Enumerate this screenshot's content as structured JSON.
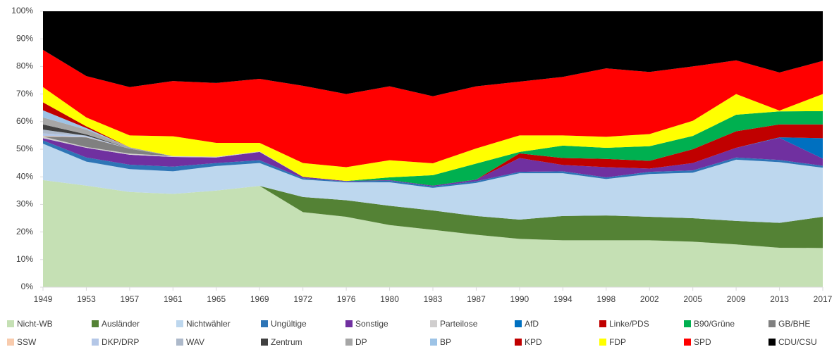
{
  "chart_data": {
    "type": "stacked_area",
    "categories": [
      "1949",
      "1953",
      "1957",
      "1961",
      "1965",
      "1969",
      "1972",
      "1976",
      "1980",
      "1983",
      "1987",
      "1990",
      "1994",
      "1998",
      "2002",
      "2005",
      "2009",
      "2013",
      "2017"
    ],
    "ylim": [
      0,
      100
    ],
    "yticks": [
      {
        "value": 0,
        "label": "0%"
      },
      {
        "value": 10,
        "label": "10%"
      },
      {
        "value": 20,
        "label": "20%"
      },
      {
        "value": 30,
        "label": "30%"
      },
      {
        "value": 40,
        "label": "40%"
      },
      {
        "value": 50,
        "label": "50%"
      },
      {
        "value": 60,
        "label": "60%"
      },
      {
        "value": 70,
        "label": "70%"
      },
      {
        "value": 80,
        "label": "80%"
      },
      {
        "value": 90,
        "label": "90%"
      },
      {
        "value": 100,
        "label": "100%"
      }
    ],
    "series": [
      {
        "name": "Nicht-WB",
        "color": "#c5e0b4",
        "values": [
          38.8,
          36.8,
          34.5,
          33.8,
          35,
          36.7,
          27.2,
          25.5,
          22.5,
          20.8,
          19,
          17.5,
          17,
          17,
          17,
          16.5,
          15.5,
          14.3,
          14.2
        ]
      },
      {
        "name": "Ausländer",
        "color": "#548235",
        "values": [
          0,
          0,
          0,
          0,
          0,
          0,
          5.5,
          6,
          7,
          7,
          6.8,
          7,
          8.8,
          9,
          8.5,
          8.5,
          8.5,
          9,
          11.3
        ]
      },
      {
        "name": "Nichtwähler",
        "color": "#bdd7ee",
        "values": [
          13.2,
          8.7,
          8.3,
          8.2,
          8.9,
          8.3,
          6.3,
          6.5,
          8.5,
          8.2,
          12,
          16.8,
          15.5,
          13.2,
          15.5,
          16.5,
          22.2,
          22,
          17.8
        ]
      },
      {
        "name": "Ungültige",
        "color": "#2e75b6",
        "values": [
          1.2,
          1.5,
          1.6,
          1.7,
          1.1,
          1.0,
          0.5,
          0.3,
          0.6,
          0.5,
          0.6,
          0.5,
          0.7,
          0.6,
          0.8,
          0.8,
          0.8,
          0.8,
          0.7
        ]
      },
      {
        "name": "Sonstige",
        "color": "#7030a0",
        "values": [
          0.8,
          3.5,
          3.6,
          3.5,
          2.0,
          3.0,
          0.5,
          0.2,
          0.2,
          0.3,
          0.6,
          5,
          2.3,
          3.7,
          1.2,
          2.7,
          3.5,
          8,
          2.6
        ]
      },
      {
        "name": "Parteilose",
        "color": "#d0cece",
        "values": [
          0.6,
          0.3,
          0.4,
          0.3,
          0.3,
          0.2,
          0,
          0,
          0,
          0,
          0,
          0,
          0,
          0,
          0,
          0,
          0,
          0,
          0
        ]
      },
      {
        "name": "AfD",
        "color": "#0070c0",
        "values": [
          0,
          0,
          0,
          0,
          0,
          0,
          0,
          0,
          0,
          0,
          0,
          0,
          0,
          0,
          0,
          0,
          0,
          0.2,
          7.4
        ]
      },
      {
        "name": "Linke/PDS",
        "color": "#c00000",
        "values": [
          0,
          0,
          0,
          0,
          0,
          0,
          0,
          0,
          0,
          0,
          0,
          1.7,
          2.5,
          3,
          2.8,
          5,
          6,
          4.7,
          5
        ]
      },
      {
        "name": "B90/Grüne",
        "color": "#00b050",
        "values": [
          0,
          0,
          0,
          0,
          0,
          0,
          0,
          0,
          1.0,
          3.8,
          5.8,
          0.5,
          4.5,
          4,
          5.3,
          4.8,
          6,
          4.7,
          4.8
        ]
      },
      {
        "name": "GB/BHE",
        "color": "#808080",
        "values": [
          0,
          3.5,
          1.8,
          0,
          0,
          0,
          0,
          0,
          0,
          0,
          0,
          0,
          0,
          0,
          0,
          0,
          0,
          0,
          0
        ]
      },
      {
        "name": "SSW",
        "color": "#f8cbad",
        "values": [
          0.2,
          0.1,
          0,
          0,
          0,
          0,
          0,
          0,
          0,
          0,
          0,
          0,
          0,
          0,
          0,
          0,
          0,
          0,
          0
        ]
      },
      {
        "name": "DKP/DRP",
        "color": "#b4c7e7",
        "values": [
          0.9,
          0.5,
          0,
          0,
          0,
          0,
          0,
          0,
          0,
          0,
          0,
          0,
          0,
          0,
          0,
          0,
          0,
          0,
          0
        ]
      },
      {
        "name": "WAV",
        "color": "#adb9ca",
        "values": [
          1.4,
          0,
          0,
          0,
          0,
          0,
          0,
          0,
          0,
          0,
          0,
          0,
          0,
          0,
          0,
          0,
          0,
          0,
          0
        ]
      },
      {
        "name": "Zentrum",
        "color": "#404040",
        "values": [
          1.9,
          0.5,
          0,
          0,
          0,
          0,
          0,
          0,
          0,
          0,
          0,
          0,
          0,
          0,
          0,
          0,
          0,
          0,
          0
        ]
      },
      {
        "name": "DP",
        "color": "#a6a6a6",
        "values": [
          2.5,
          1.7,
          0.5,
          0,
          0,
          0,
          0,
          0,
          0,
          0,
          0,
          0,
          0,
          0,
          0,
          0,
          0,
          0,
          0
        ]
      },
      {
        "name": "BP",
        "color": "#9dc3e6",
        "values": [
          2.6,
          0.6,
          0,
          0,
          0,
          0,
          0,
          0,
          0,
          0,
          0,
          0,
          0,
          0,
          0,
          0,
          0,
          0,
          0
        ]
      },
      {
        "name": "KPD",
        "color": "#c00000",
        "values": [
          2.9,
          0.6,
          0,
          0,
          0,
          0,
          0,
          0,
          0,
          0,
          0,
          0,
          0,
          0,
          0,
          0,
          0,
          0,
          0
        ]
      },
      {
        "name": "FDP",
        "color": "#ffff00",
        "values": [
          5.5,
          3.2,
          4.3,
          7.2,
          5,
          3.1,
          5,
          5,
          6.2,
          4.3,
          5.5,
          6,
          3.7,
          4,
          4.4,
          5.5,
          7.5,
          0.3,
          6.2
        ]
      },
      {
        "name": "SPD",
        "color": "#ff0000",
        "values": [
          13.5,
          15,
          17.5,
          20,
          21.7,
          23.2,
          28,
          26.5,
          26.8,
          24.3,
          22.5,
          19.5,
          21.2,
          24.8,
          22.5,
          19.7,
          12.2,
          13.8,
          12
        ]
      },
      {
        "name": "CDU/CSU",
        "color": "#000000",
        "values": [
          14,
          23.5,
          27.5,
          25.3,
          26,
          24.5,
          27,
          30,
          27.2,
          30.8,
          27.2,
          25.5,
          23.8,
          20.7,
          22,
          20,
          17.8,
          22.2,
          18
        ]
      }
    ]
  }
}
